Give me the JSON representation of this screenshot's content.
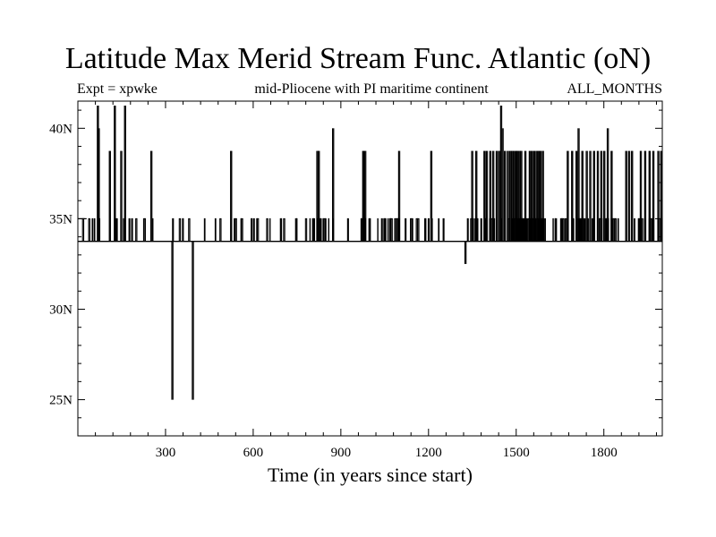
{
  "chart_data": {
    "type": "line",
    "title": "Latitude Max Merid Stream Func. Atlantic (oN)",
    "subtitle_left": "Expt = xpwke",
    "subtitle_center": "mid-Pliocene with PI maritime continent",
    "subtitle_right": "ALL_MONTHS",
    "xlabel": "Time (in years since start)",
    "ylabel": "",
    "xlim": [
      0,
      2000
    ],
    "ylim": [
      23,
      41.5
    ],
    "x_ticks": [
      300,
      600,
      900,
      1200,
      1500,
      1800
    ],
    "y_ticks": [
      {
        "value": 25,
        "label": "25N"
      },
      {
        "value": 30,
        "label": "30N"
      },
      {
        "value": 35,
        "label": "35N"
      },
      {
        "value": 40,
        "label": "40N"
      }
    ],
    "grid": false,
    "series": [
      {
        "baseline": 33.75,
        "levels": [
          35.0,
          38.75,
          40.0,
          41.25
        ],
        "spikes": [
          {
            "x": 67,
            "y": 41.25
          },
          {
            "x": 70,
            "y": 40.0
          },
          {
            "x": 108,
            "y": 38.75
          },
          {
            "x": 125,
            "y": 41.25
          },
          {
            "x": 147,
            "y": 38.75
          },
          {
            "x": 160,
            "y": 41.25
          },
          {
            "x": 250,
            "y": 38.75
          },
          {
            "x": 322,
            "y": 25.0
          },
          {
            "x": 392,
            "y": 25.0
          },
          {
            "x": 523,
            "y": 38.75
          },
          {
            "x": 818,
            "y": 38.75
          },
          {
            "x": 823,
            "y": 38.75
          },
          {
            "x": 872,
            "y": 40.0
          },
          {
            "x": 975,
            "y": 38.75
          },
          {
            "x": 982,
            "y": 38.75
          },
          {
            "x": 1098,
            "y": 38.75
          },
          {
            "x": 1208,
            "y": 38.75
          },
          {
            "x": 1325,
            "y": 32.5
          },
          {
            "x": 1348,
            "y": 38.75
          },
          {
            "x": 1362,
            "y": 38.75
          },
          {
            "x": 1390,
            "y": 38.75
          },
          {
            "x": 1398,
            "y": 38.75
          },
          {
            "x": 1410,
            "y": 38.75
          },
          {
            "x": 1420,
            "y": 38.75
          },
          {
            "x": 1432,
            "y": 38.75
          },
          {
            "x": 1440,
            "y": 38.75
          },
          {
            "x": 1447,
            "y": 41.25
          },
          {
            "x": 1452,
            "y": 40.0
          },
          {
            "x": 1460,
            "y": 38.75
          },
          {
            "x": 1470,
            "y": 38.75
          },
          {
            "x": 1478,
            "y": 38.75
          },
          {
            "x": 1484,
            "y": 38.75
          },
          {
            "x": 1490,
            "y": 38.75
          },
          {
            "x": 1497,
            "y": 38.75
          },
          {
            "x": 1503,
            "y": 38.75
          },
          {
            "x": 1510,
            "y": 38.75
          },
          {
            "x": 1516,
            "y": 38.75
          },
          {
            "x": 1530,
            "y": 38.75
          },
          {
            "x": 1545,
            "y": 38.75
          },
          {
            "x": 1552,
            "y": 38.75
          },
          {
            "x": 1560,
            "y": 38.75
          },
          {
            "x": 1568,
            "y": 38.75
          },
          {
            "x": 1575,
            "y": 38.75
          },
          {
            "x": 1582,
            "y": 38.75
          },
          {
            "x": 1590,
            "y": 38.75
          },
          {
            "x": 1675,
            "y": 38.75
          },
          {
            "x": 1690,
            "y": 38.75
          },
          {
            "x": 1705,
            "y": 38.75
          },
          {
            "x": 1712,
            "y": 40.0
          },
          {
            "x": 1725,
            "y": 38.75
          },
          {
            "x": 1740,
            "y": 38.75
          },
          {
            "x": 1752,
            "y": 38.75
          },
          {
            "x": 1765,
            "y": 38.75
          },
          {
            "x": 1778,
            "y": 38.75
          },
          {
            "x": 1790,
            "y": 38.75
          },
          {
            "x": 1800,
            "y": 38.75
          },
          {
            "x": 1812,
            "y": 40.0
          },
          {
            "x": 1825,
            "y": 38.75
          },
          {
            "x": 1875,
            "y": 38.75
          },
          {
            "x": 1885,
            "y": 38.75
          },
          {
            "x": 1895,
            "y": 38.75
          },
          {
            "x": 1925,
            "y": 38.75
          },
          {
            "x": 1940,
            "y": 38.75
          },
          {
            "x": 1955,
            "y": 38.75
          },
          {
            "x": 1968,
            "y": 38.75
          },
          {
            "x": 1985,
            "y": 38.75
          },
          {
            "x": 1995,
            "y": 38.75
          }
        ],
        "dense_ranges": [
          {
            "from": 0,
            "to": 200,
            "density": 0.35
          },
          {
            "from": 200,
            "to": 500,
            "density": 0.18
          },
          {
            "from": 500,
            "to": 980,
            "density": 0.3
          },
          {
            "from": 980,
            "to": 1100,
            "density": 0.55
          },
          {
            "from": 1100,
            "to": 1280,
            "density": 0.3
          },
          {
            "from": 1330,
            "to": 1600,
            "density": 0.6
          },
          {
            "from": 1600,
            "to": 1680,
            "density": 0.35
          },
          {
            "from": 1680,
            "to": 2000,
            "density": 0.5
          }
        ]
      }
    ]
  }
}
